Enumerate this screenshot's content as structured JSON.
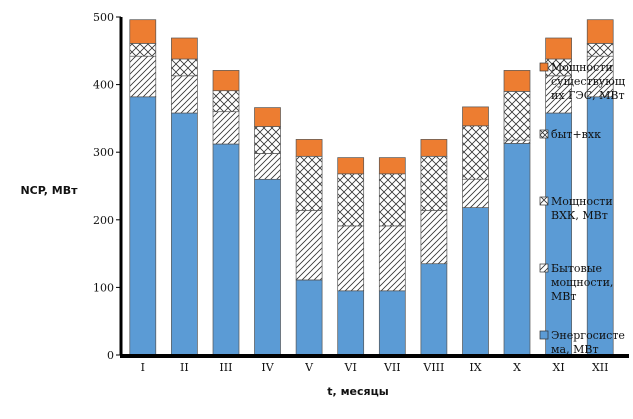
{
  "chart_data": {
    "type": "bar",
    "stacked": true,
    "categories": [
      "I",
      "II",
      "III",
      "IV",
      "V",
      "VI",
      "VII",
      "VIII",
      "IX",
      "X",
      "XI",
      "XII"
    ],
    "series": [
      {
        "name": "Энергосистема, МВт",
        "label_lines": [
          "Энергосисте",
          "ма, МВт"
        ],
        "color": "#5b9bd5",
        "pattern": "solid",
        "values": [
          382,
          358,
          312,
          260,
          111,
          95,
          95,
          135,
          218,
          313,
          358,
          382
        ]
      },
      {
        "name": "Бытовые мощности, МВт",
        "label_lines": [
          "Бытовые",
          "мощности,",
          "МВт"
        ],
        "color": "#ffffff",
        "pattern": "diagonal",
        "values": [
          60,
          55,
          48,
          38,
          103,
          96,
          96,
          79,
          42,
          5,
          55,
          60
        ]
      },
      {
        "name": "Мощности ВХК, МВт",
        "label_lines": [
          "Мощности",
          "ВХК, МВт"
        ],
        "color": "#ffffff",
        "pattern": "crosshatch",
        "values": [
          19,
          25,
          31,
          40,
          80,
          77,
          77,
          80,
          79,
          72,
          25,
          19
        ]
      },
      {
        "name": "быт+вхк",
        "label_lines": [
          "быт+вхк"
        ],
        "color": "#ffffff",
        "pattern": "crosshatch-dense",
        "values": [
          0,
          0,
          0,
          0,
          0,
          0,
          0,
          0,
          0,
          0,
          0,
          0
        ]
      },
      {
        "name": "Мощности существующих ГЭС, МВт",
        "label_lines": [
          "Мощности",
          "существующ",
          "их ГЭС, МВт"
        ],
        "color": "#ed7d31",
        "pattern": "solid",
        "values": [
          35,
          31,
          30,
          28,
          25,
          24,
          24,
          25,
          28,
          31,
          31,
          35
        ]
      }
    ],
    "ylabel": "NCP, МВт",
    "xlabel": "t, месяцы",
    "ylim": [
      0,
      500
    ],
    "yticks": [
      0,
      100,
      200,
      300,
      400,
      500
    ],
    "grid": false,
    "legend_position": "right"
  }
}
